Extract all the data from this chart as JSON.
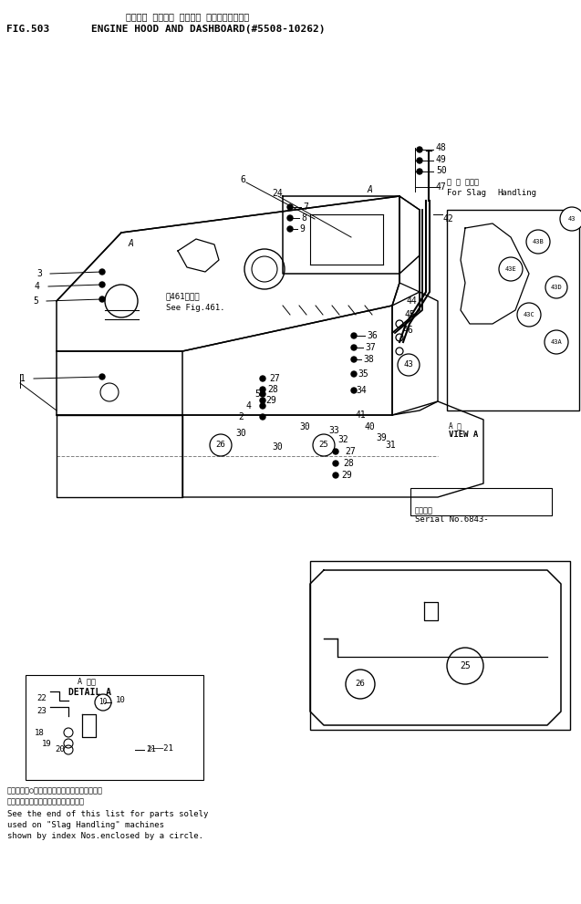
{
  "fig_label": "FIG.503",
  "title_japanese": "エンジン フード゜ オヤビ゜ ダッシュボード゜",
  "title_english": "ENGINE HOOD AND DASHBOARD(#5508-10262)",
  "bg_color": "#ffffff",
  "line_color": "#000000",
  "note_japanese1": "素引番号の○図はノロ処理用部品として準備品",
  "note_japanese2": "とべる品品の名をリストの末尾に示す",
  "note_english1": "See the end of this list for parts solely",
  "note_english2": "used on \"Slag Handling\" machines",
  "note_english3": "shown by index Nos.enclosed by a circle.",
  "slag_jp": "／ ロ 処理用",
  "slag_en1": "For Slag",
  "slag_en2": "Handling",
  "serial_jp": "適用底筆",
  "serial_en": "Serial No.6843-",
  "detail_a": "DETAIL A",
  "detail_a_jp": "A 限範",
  "view_a": "VIEW A",
  "view_a_jp": "A 筋",
  "see_fig_jp": "第461図参照",
  "see_fig_en": "See Fig.461."
}
